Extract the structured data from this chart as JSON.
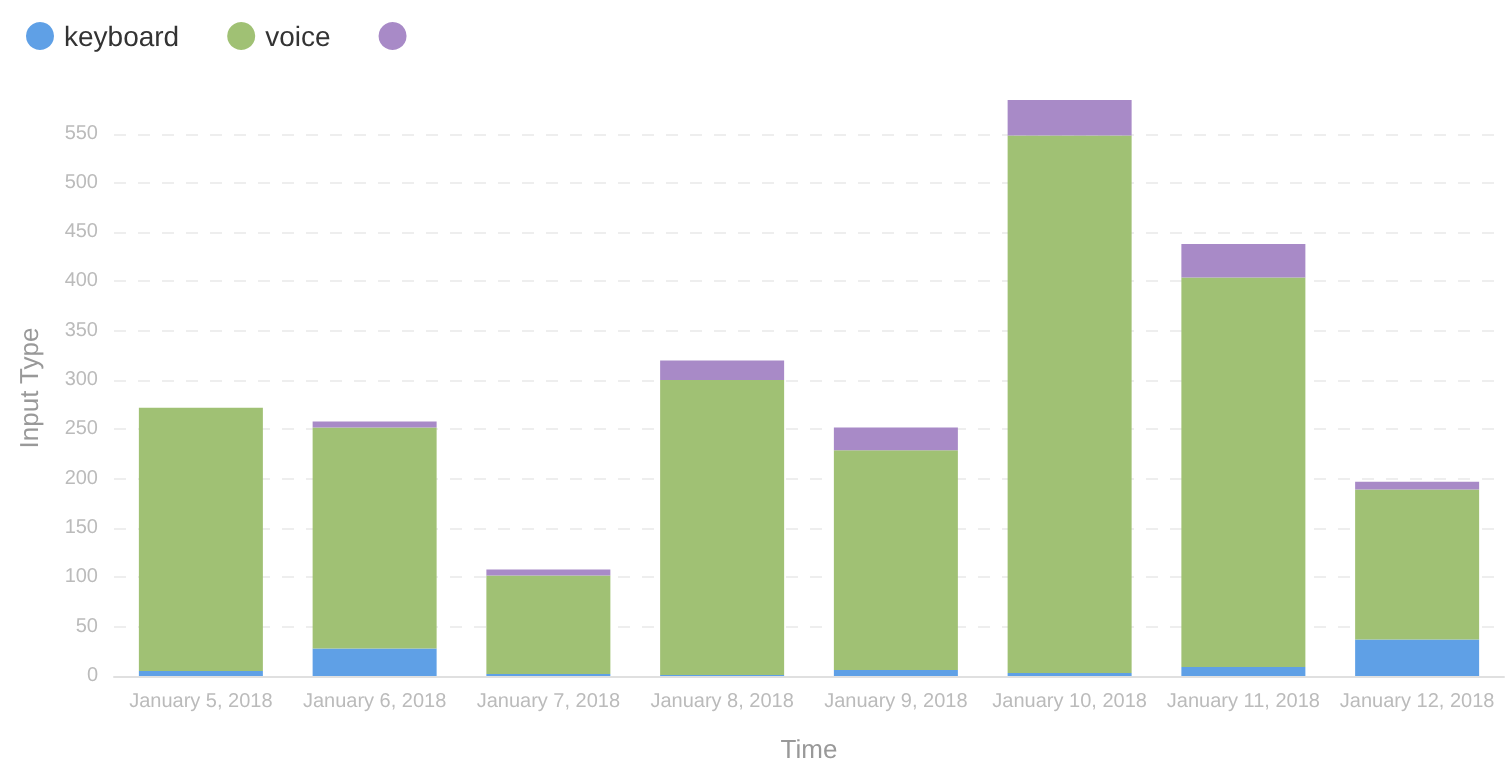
{
  "chart_data": {
    "type": "bar",
    "stacked": true,
    "xlabel": "Time",
    "ylabel": "Input Type",
    "categories": [
      "January 5, 2018",
      "January 6, 2018",
      "January 7, 2018",
      "January 8, 2018",
      "January 9, 2018",
      "January 10, 2018",
      "January 11, 2018",
      "January 12, 2018"
    ],
    "series": [
      {
        "name": "keyboard",
        "color": "#5fa0e6",
        "values": [
          5,
          28,
          2,
          1,
          6,
          3,
          9,
          37
        ]
      },
      {
        "name": "voice",
        "color": "#a0c174",
        "values": [
          267,
          224,
          100,
          299,
          223,
          545,
          395,
          152
        ]
      },
      {
        "color": "#a88ac7",
        "values": [
          0,
          6,
          6,
          20,
          23,
          36,
          34,
          8
        ]
      }
    ],
    "ylim": [
      0,
      584
    ],
    "yticks": [
      0,
      50,
      100,
      150,
      200,
      250,
      300,
      350,
      400,
      450,
      500,
      550
    ],
    "grid": "y",
    "legend": "top left"
  }
}
